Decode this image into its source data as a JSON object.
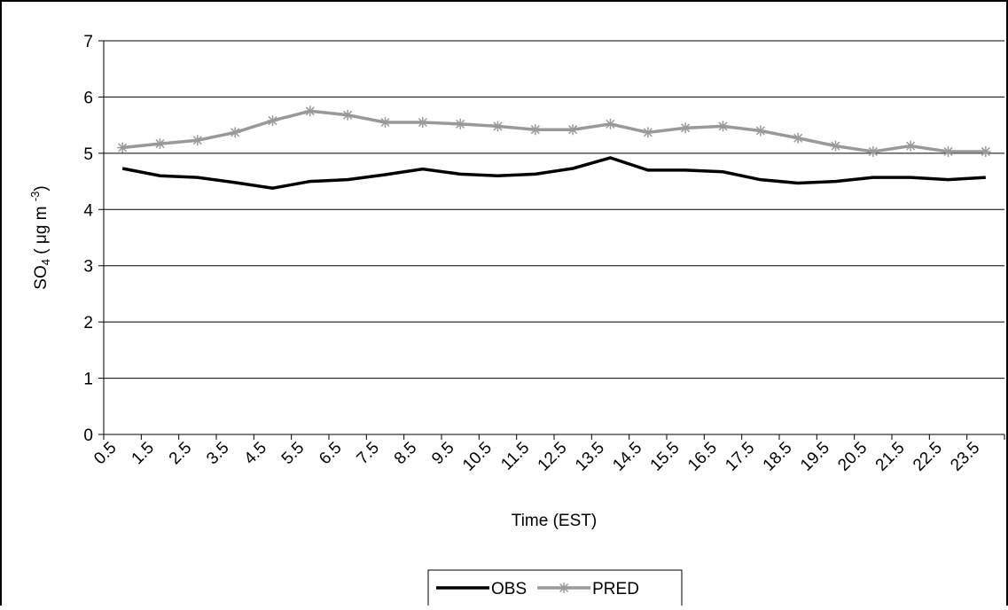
{
  "chart_data": {
    "type": "line",
    "y_label": {
      "main": "SO",
      "sub": "4",
      "mid": " ( μg m ",
      "sup": "-3",
      "end": ")"
    },
    "x_label": "Time (EST)",
    "categories": [
      "0.5",
      "1.5",
      "2.5",
      "3.5",
      "4.5",
      "5.5",
      "6.5",
      "7.5",
      "8.5",
      "9.5",
      "10.5",
      "11.5",
      "12.5",
      "13.5",
      "14.5",
      "15.5",
      "16.5",
      "17.5",
      "18.5",
      "19.5",
      "20.5",
      "21.5",
      "22.5",
      "23.5"
    ],
    "series": [
      {
        "name": "OBS",
        "color": "#000000",
        "marker": "none",
        "values": [
          4.73,
          4.6,
          4.57,
          4.48,
          4.38,
          4.5,
          4.53,
          4.62,
          4.72,
          4.63,
          4.6,
          4.63,
          4.73,
          4.92,
          4.7,
          4.7,
          4.67,
          4.53,
          4.47,
          4.5,
          4.57,
          4.57,
          4.53,
          4.57
        ]
      },
      {
        "name": "PRED",
        "color": "#999999",
        "marker": "star",
        "values": [
          5.1,
          5.17,
          5.23,
          5.37,
          5.58,
          5.75,
          5.68,
          5.55,
          5.55,
          5.52,
          5.48,
          5.42,
          5.42,
          5.52,
          5.37,
          5.45,
          5.48,
          5.4,
          5.27,
          5.13,
          5.03,
          5.13,
          5.03,
          5.03
        ]
      }
    ],
    "ylim": [
      0,
      7
    ],
    "yticks": [
      0,
      1,
      2,
      3,
      4,
      5,
      6,
      7
    ],
    "grid": true,
    "legend": "bottom"
  }
}
